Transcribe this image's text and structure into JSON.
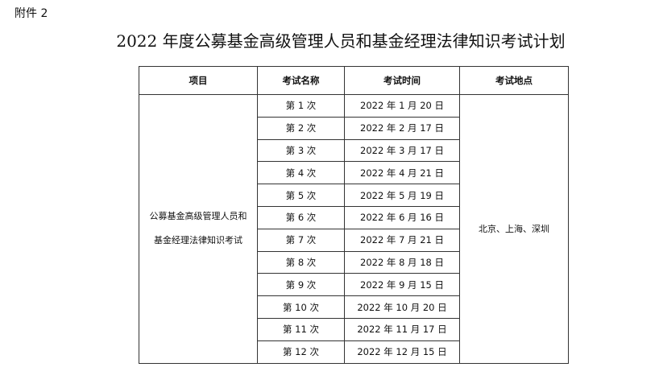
{
  "attachment_label": "附件 2",
  "title": "2022 年度公募基金高级管理人员和基金经理法律知识考试计划",
  "table": {
    "headers": [
      "项目",
      "考试名称",
      "考试时间",
      "考试地点"
    ],
    "project_lines": [
      "公募基金高级管理人员和",
      "基金经理法律知识考试"
    ],
    "location": "北京、上海、深圳",
    "rows": [
      {
        "name": "第 1 次",
        "date": "2022 年 1 月 20 日"
      },
      {
        "name": "第 2 次",
        "date": "2022 年 2 月 17 日"
      },
      {
        "name": "第 3 次",
        "date": "2022 年 3 月 17 日"
      },
      {
        "name": "第 4 次",
        "date": "2022 年 4 月 21 日"
      },
      {
        "name": "第 5 次",
        "date": "2022 年 5 月 19 日"
      },
      {
        "name": "第 6 次",
        "date": "2022 年 6 月 16 日"
      },
      {
        "name": "第 7 次",
        "date": "2022 年 7 月 21 日"
      },
      {
        "name": "第 8 次",
        "date": "2022 年 8 月 18 日"
      },
      {
        "name": "第 9 次",
        "date": "2022 年 9 月 15 日"
      },
      {
        "name": "第 10 次",
        "date": "2022 年 10 月 20 日"
      },
      {
        "name": "第 11 次",
        "date": "2022 年 11 月 17 日"
      },
      {
        "name": "第 12 次",
        "date": "2022 年 12 月 15 日"
      }
    ]
  }
}
